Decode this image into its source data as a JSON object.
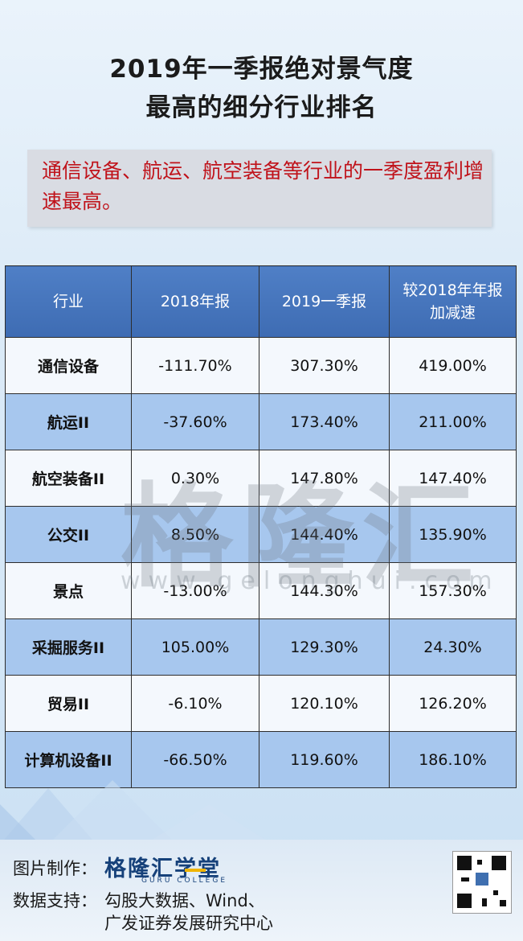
{
  "title": {
    "line1": "2019年一季报绝对景气度",
    "line2": "最高的细分行业排名"
  },
  "highlight": "通信设备、航运、航空装备等行业的一季度盈利增速最高。",
  "table": {
    "headers": [
      "行业",
      "2018年报",
      "2019一季报",
      "较2018年年报",
      "加减速"
    ],
    "rows": [
      {
        "industry": "通信设备",
        "y2018": "-111.70%",
        "q1_2019": "307.30%",
        "change": "419.00%"
      },
      {
        "industry": "航运II",
        "y2018": "-37.60%",
        "q1_2019": "173.40%",
        "change": "211.00%"
      },
      {
        "industry": "航空装备II",
        "y2018": "0.30%",
        "q1_2019": "147.80%",
        "change": "147.40%"
      },
      {
        "industry": "公交II",
        "y2018": "8.50%",
        "q1_2019": "144.40%",
        "change": "135.90%"
      },
      {
        "industry": "景点",
        "y2018": "-13.00%",
        "q1_2019": "144.30%",
        "change": "157.30%"
      },
      {
        "industry": "采掘服务II",
        "y2018": "105.00%",
        "q1_2019": "129.30%",
        "change": "24.30%"
      },
      {
        "industry": "贸易II",
        "y2018": "-6.10%",
        "q1_2019": "120.10%",
        "change": "126.20%"
      },
      {
        "industry": "计算机设备II",
        "y2018": "-66.50%",
        "q1_2019": "119.60%",
        "change": "186.10%"
      }
    ]
  },
  "watermark": {
    "text": "格隆汇",
    "url": "www.gelonghui.com"
  },
  "footer": {
    "maker_label": "图片制作：",
    "logo_text": "格隆汇学堂",
    "logo_sub": "GURU COLLEGE",
    "source_label": "数据支持：",
    "source_line1": "勾股大数据、Wind、",
    "source_line2": "广发证券发展研究中心"
  },
  "colors": {
    "header_blue": "#4a78c0",
    "row_light": "#f4f8fd",
    "row_blue": "#a7c7ee",
    "highlight_red": "#c0121a"
  },
  "icons": {
    "qr": "qr-code-icon"
  }
}
